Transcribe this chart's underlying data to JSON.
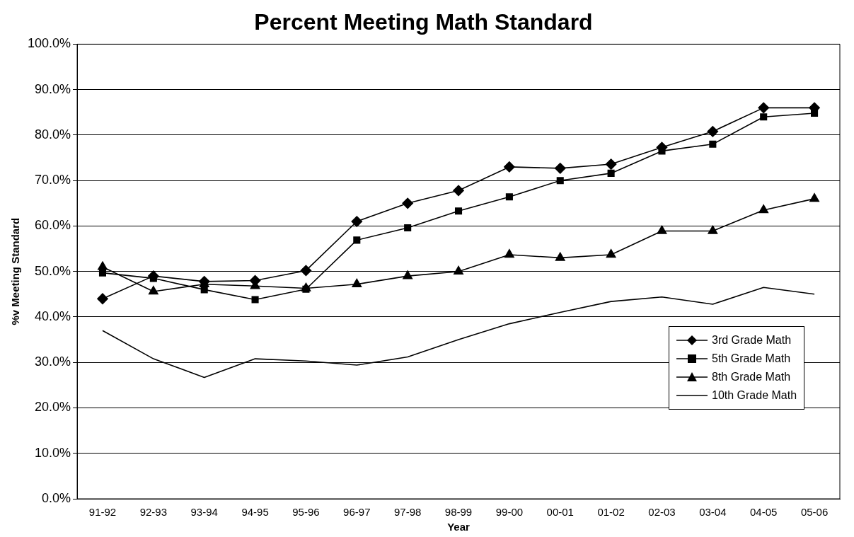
{
  "chart_data": {
    "type": "line",
    "title": "Percent Meeting Math Standard",
    "xlabel": "Year",
    "ylabel": "%v Meeting Standard",
    "categories": [
      "91-92",
      "92-93",
      "93-94",
      "94-95",
      "95-96",
      "96-97",
      "97-98",
      "98-99",
      "99-00",
      "00-01",
      "01-02",
      "02-03",
      "03-04",
      "04-05",
      "05-06"
    ],
    "series": [
      {
        "name": "3rd Grade Math",
        "color": "#000000",
        "marker": "diamond",
        "values": [
          44,
          49,
          47.8,
          48,
          50.2,
          61,
          65,
          67.8,
          73,
          72.7,
          73.6,
          77.3,
          80.8,
          86,
          86
        ]
      },
      {
        "name": "5th Grade Math",
        "color": "#000000",
        "marker": "square",
        "values": [
          49.7,
          48.5,
          46,
          43.8,
          46.1,
          56.9,
          59.6,
          63.3,
          66.4,
          70,
          71.6,
          76.5,
          78,
          84,
          84.8
        ]
      },
      {
        "name": "8th Grade Math",
        "color": "#000000",
        "marker": "triangle",
        "values": [
          51,
          45.6,
          47.2,
          46.8,
          46.3,
          47.2,
          49,
          50,
          53.7,
          53,
          53.7,
          58.9,
          58.9,
          63.5,
          66
        ]
      },
      {
        "name": "10th Grade Math",
        "color": "#000000",
        "marker": "none",
        "values": [
          37,
          30.8,
          26.7,
          30.8,
          30.3,
          29.4,
          31.2,
          35,
          38.5,
          41,
          43.4,
          44.4,
          42.8,
          46.5,
          45
        ]
      }
    ],
    "ylim": [
      0,
      100
    ],
    "yticks": [
      {
        "value": 0,
        "label": "0.0%"
      },
      {
        "value": 10,
        "label": "10.0%"
      },
      {
        "value": 20,
        "label": "20.0%"
      },
      {
        "value": 30,
        "label": "30.0%"
      },
      {
        "value": 40,
        "label": "40.0%"
      },
      {
        "value": 50,
        "label": "50.0%"
      },
      {
        "value": 60,
        "label": "60.0%"
      },
      {
        "value": 70,
        "label": "70.0%"
      },
      {
        "value": 80,
        "label": "80.0%"
      },
      {
        "value": 90,
        "label": "90.0%"
      },
      {
        "value": 100,
        "label": "100.0%"
      }
    ],
    "grid": "y",
    "legend": "right",
    "line_style": "solid"
  }
}
